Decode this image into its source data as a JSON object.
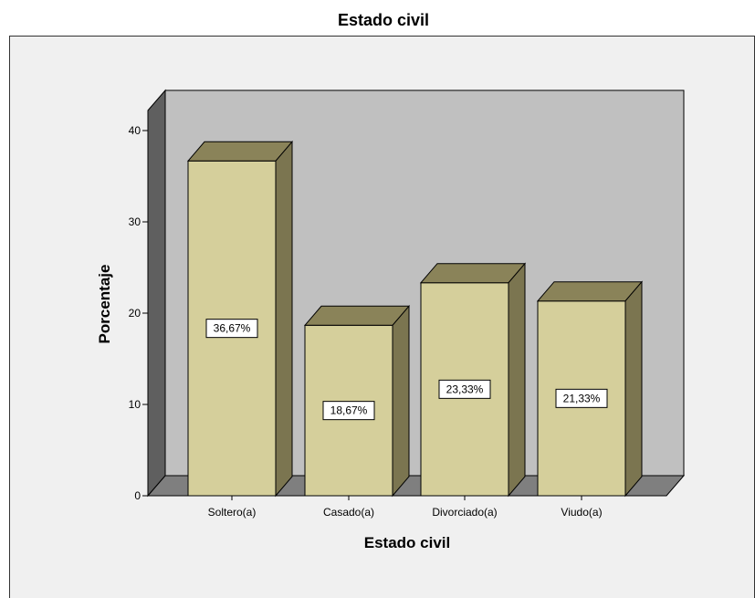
{
  "chart_data": {
    "type": "bar",
    "title": "Estado civil",
    "xlabel": "Estado civil",
    "ylabel": "Porcentaje",
    "categories": [
      "Soltero(a)",
      "Casado(a)",
      "Divorciado(a)",
      "Viudo(a)"
    ],
    "values": [
      36.67,
      18.67,
      23.33,
      21.33
    ],
    "data_labels": [
      "36,67%",
      "18,67%",
      "23,33%",
      "21,33%"
    ],
    "ylim": [
      0,
      40
    ],
    "yticks": [
      "0",
      "10",
      "20",
      "30",
      "40"
    ],
    "grid": false,
    "legend": "none",
    "three_d": true
  },
  "colors": {
    "chart_area_bg": "#f0f0f0",
    "back_wall": "#c0c0c0",
    "side_wall": "#5f5f5f",
    "floor": "#7f7f7f",
    "bar_front": "#d5cf9b",
    "bar_top": "#8a8359",
    "bar_side": "#7b7550",
    "label_box": "#ffffff"
  }
}
